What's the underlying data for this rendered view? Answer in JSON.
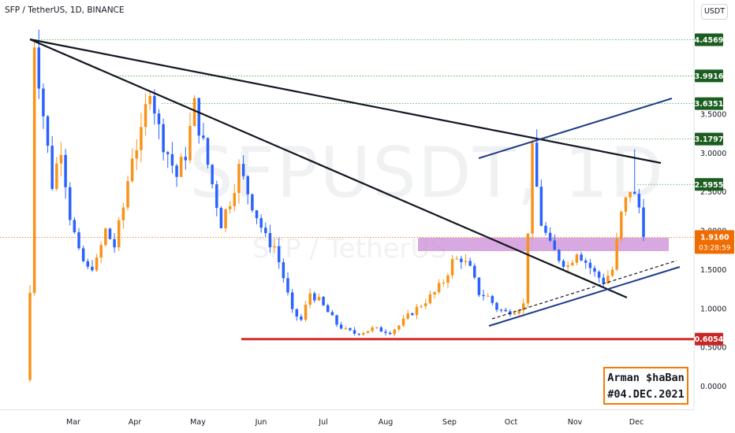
{
  "header": {
    "title": "SFP / TetherUS, 1D, BINANCE"
  },
  "watermark": {
    "symbol": "SFPUSDT, 1D",
    "name": "SFP / TetherUS"
  },
  "unit_button": "USDT",
  "signature": {
    "line1": "Arman $haBan",
    "line2": "#04.DEC.2021"
  },
  "colors": {
    "up": "#f7931a",
    "down": "#2962ff",
    "trend": "#131722",
    "channel": "#1e3a8a",
    "support": "#d32f2f",
    "zone": "#ce93d8",
    "level_tag": "#1b5e20"
  },
  "chart_data": {
    "type": "candlestick",
    "title": "SFP / TetherUS, 1D, BINANCE",
    "ylim": [
      -0.25,
      4.75
    ],
    "y_ticks": [
      "0.0000",
      "0.5000",
      "1.0000",
      "1.5000",
      "2.0000",
      "2.5000",
      "3.0000",
      "3.5000"
    ],
    "x_labels": [
      "Mar",
      "Apr",
      "May",
      "Jun",
      "Jul",
      "Aug",
      "Sep",
      "Oct",
      "Nov",
      "Dec"
    ],
    "level_labels": [
      {
        "value": 4.4569,
        "label": "4.4569",
        "color": "#1b5e20"
      },
      {
        "value": 3.9916,
        "label": "3.9916",
        "color": "#1b5e20"
      },
      {
        "value": 3.6351,
        "label": "3.6351",
        "color": "#1b5e20"
      },
      {
        "value": 3.1797,
        "label": "3.1797",
        "color": "#1b5e20"
      },
      {
        "value": 2.5955,
        "label": "2.5955",
        "color": "#1b5e20"
      },
      {
        "value": 0.6054,
        "label": "0.6054",
        "color": "#c62828"
      }
    ],
    "current": {
      "value": 1.916,
      "label": "1.9160",
      "countdown": "03:28:59"
    },
    "price_path": [
      [
        0,
        0.1
      ],
      [
        1,
        4.46
      ],
      [
        3,
        3.5
      ],
      [
        5,
        2.6
      ],
      [
        7,
        3.1
      ],
      [
        9,
        2.2
      ],
      [
        11,
        1.7
      ],
      [
        13,
        1.5
      ],
      [
        15,
        1.6
      ],
      [
        17,
        2.0
      ],
      [
        19,
        1.8
      ],
      [
        21,
        2.3
      ],
      [
        23,
        3.0
      ],
      [
        25,
        3.2
      ],
      [
        27,
        3.9
      ],
      [
        29,
        3.3
      ],
      [
        31,
        3.0
      ],
      [
        33,
        2.7
      ],
      [
        35,
        3.0
      ],
      [
        37,
        3.6
      ],
      [
        39,
        3.1
      ],
      [
        41,
        2.6
      ],
      [
        43,
        2.1
      ],
      [
        45,
        2.4
      ],
      [
        47,
        2.8
      ],
      [
        49,
        2.5
      ],
      [
        51,
        2.2
      ],
      [
        53,
        1.9
      ],
      [
        55,
        1.8
      ],
      [
        57,
        1.4
      ],
      [
        59,
        0.95
      ],
      [
        61,
        0.85
      ],
      [
        63,
        1.2
      ],
      [
        65,
        1.1
      ],
      [
        67,
        0.95
      ],
      [
        69,
        0.8
      ],
      [
        71,
        0.72
      ],
      [
        73,
        0.68
      ],
      [
        75,
        0.7
      ],
      [
        77,
        0.74
      ],
      [
        79,
        0.72
      ],
      [
        81,
        0.7
      ],
      [
        83,
        0.78
      ],
      [
        85,
        0.9
      ],
      [
        87,
        1.0
      ],
      [
        89,
        1.1
      ],
      [
        91,
        1.2
      ],
      [
        93,
        1.35
      ],
      [
        95,
        1.6
      ],
      [
        97,
        1.65
      ],
      [
        99,
        1.5
      ],
      [
        101,
        1.2
      ],
      [
        103,
        1.15
      ],
      [
        105,
        1.0
      ],
      [
        107,
        0.95
      ],
      [
        109,
        0.98
      ],
      [
        111,
        1.05
      ],
      [
        113,
        3.0
      ],
      [
        115,
        2.1
      ],
      [
        117,
        1.8
      ],
      [
        119,
        1.65
      ],
      [
        121,
        1.55
      ],
      [
        123,
        1.75
      ],
      [
        125,
        1.6
      ],
      [
        127,
        1.45
      ],
      [
        129,
        1.35
      ],
      [
        131,
        1.5
      ],
      [
        133,
        2.2
      ],
      [
        135,
        2.55
      ],
      [
        137,
        2.3
      ],
      [
        138,
        1.916
      ]
    ],
    "candles": 139
  }
}
